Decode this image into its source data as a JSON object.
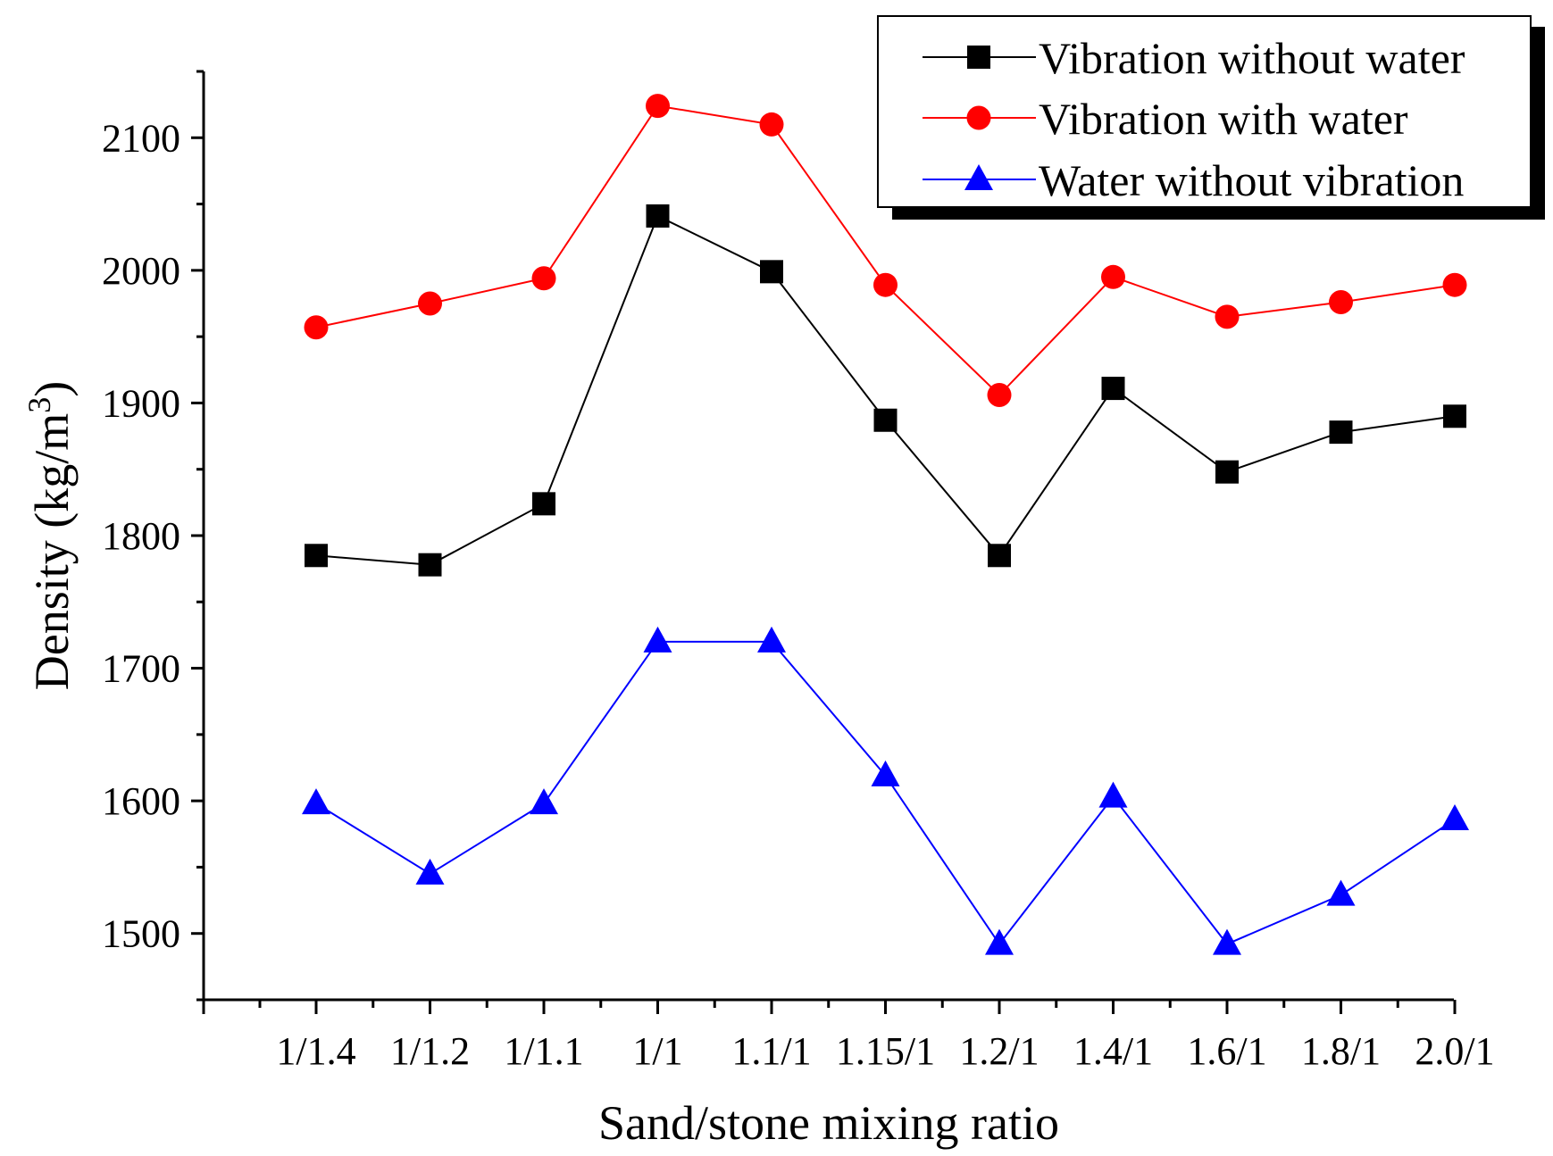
{
  "chart_data": {
    "type": "line",
    "title": "",
    "xlabel": "Sand/stone mixing ratio",
    "ylabel_main": "Density (kg/m",
    "ylabel_sup": "3",
    "ylabel_close": ")",
    "categories": [
      "1/1.4",
      "1/1.2",
      "1/1.1",
      "1/1",
      "1.1/1",
      "1.15/1",
      "1.2/1",
      "1.4/1",
      "1.6/1",
      "1.8/1",
      "2.0/1"
    ],
    "ylim": [
      1450,
      2150
    ],
    "yticks": [
      1500,
      1600,
      1700,
      1800,
      1900,
      2000,
      2100
    ],
    "ytick_labels": [
      "1500",
      "1600",
      "1700",
      "1800",
      "1900",
      "2000",
      "2100"
    ],
    "grid": false,
    "legend_position": "top-right",
    "series": [
      {
        "name": "Vibration without water",
        "color": "#000000",
        "marker": "square",
        "values": [
          1785,
          1778,
          1824,
          2041,
          1999,
          1887,
          1785,
          1911,
          1848,
          1878,
          1890
        ]
      },
      {
        "name": "Vibration with water",
        "color": "#ff0000",
        "marker": "circle",
        "values": [
          1957,
          1975,
          1994,
          2124,
          2110,
          1989,
          1906,
          1995,
          1965,
          1976,
          1989
        ]
      },
      {
        "name": "Water without vibration",
        "color": "#0000ff",
        "marker": "triangle",
        "values": [
          1598,
          1545,
          1598,
          1720,
          1720,
          1619,
          1492,
          1603,
          1492,
          1529,
          1586
        ]
      }
    ]
  }
}
